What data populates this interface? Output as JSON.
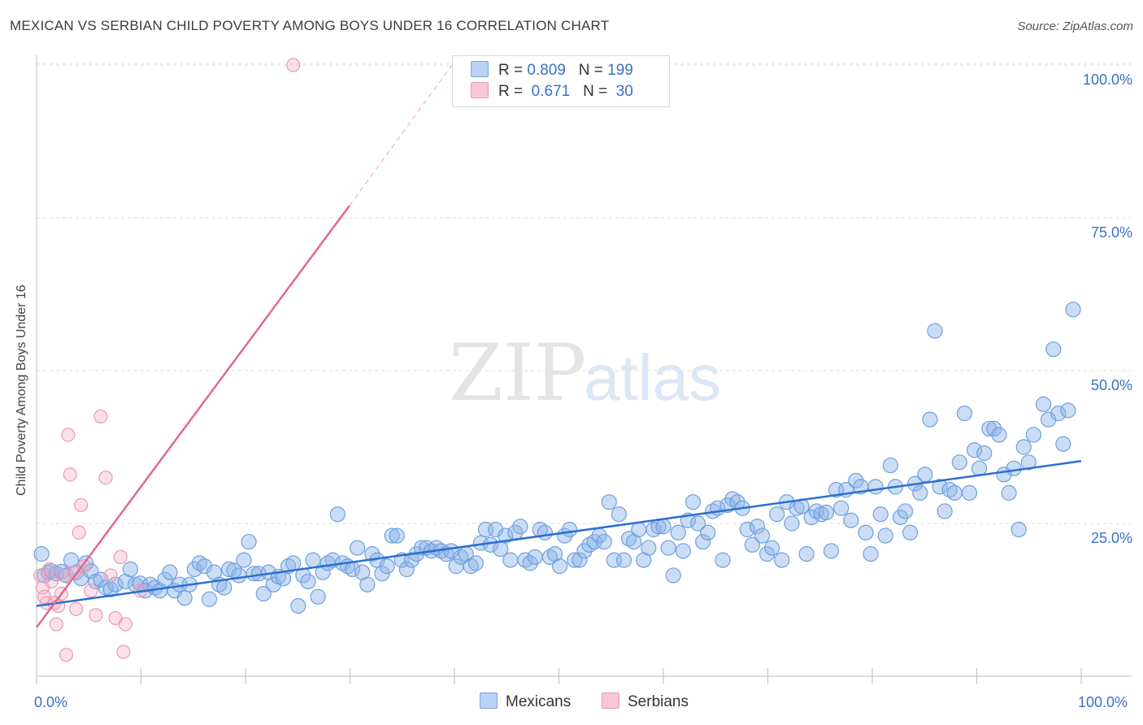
{
  "title": "MEXICAN VS SERBIAN CHILD POVERTY AMONG BOYS UNDER 16 CORRELATION CHART",
  "source": "Source: ZipAtlas.com",
  "watermark": {
    "zip": "ZIP",
    "atlas": "atlas"
  },
  "colors": {
    "blue": "#8cb4e8",
    "blue_line": "#2a6fd0",
    "pink": "#f2a9bf",
    "pink_line": "#e06890",
    "tick": "#3a6fc8"
  },
  "legend_top": {
    "rows": [
      {
        "r_label": "R =",
        "r_value": "0.809",
        "n_label": "N =",
        "n_value": "199",
        "color": "#b9d1f3",
        "border": "#7aa6e0"
      },
      {
        "r_label": "R =",
        "r_value": "0.671",
        "n_label": "N =",
        "n_value": "30",
        "color": "#f9c6d5",
        "border": "#ee96b2"
      }
    ]
  },
  "legend_bottom": [
    {
      "label": "Mexicans",
      "color": "#b9d1f3",
      "border": "#7aa6e0"
    },
    {
      "label": "Serbians",
      "color": "#f9c6d5",
      "border": "#ee96b2"
    }
  ],
  "chart_data": {
    "type": "scatter",
    "title": "MEXICAN VS SERBIAN CHILD POVERTY AMONG BOYS UNDER 16 CORRELATION CHART",
    "ylabel": "Child Poverty Among Boys Under 16",
    "xlabel": "",
    "xlim": [
      0,
      100
    ],
    "ylim": [
      0,
      100
    ],
    "x_ticks": [
      "0.0%",
      "100.0%"
    ],
    "y_ticks": [
      {
        "value": 25,
        "label": "25.0%"
      },
      {
        "value": 50,
        "label": "50.0%"
      },
      {
        "value": 75,
        "label": "75.0%"
      },
      {
        "value": 100,
        "label": "100.0%"
      }
    ],
    "grid": "horizontal dashed",
    "series": [
      {
        "name": "Mexicans",
        "R": 0.809,
        "N": 199,
        "trend": {
          "x0": 0,
          "y0": 11.5,
          "x1": 100,
          "y1": 35.2
        },
        "points": [
          [
            0.5,
            20.0
          ],
          [
            0.8,
            16.5
          ],
          [
            1.2,
            17.0
          ],
          [
            1.5,
            17.2
          ],
          [
            2.0,
            16.8
          ],
          [
            2.5,
            17.1
          ],
          [
            3.0,
            16.5
          ],
          [
            3.5,
            19.0
          ],
          [
            4.0,
            17.0
          ],
          [
            4.5,
            16.0
          ],
          [
            5.0,
            18.5
          ],
          [
            5.5,
            17.2
          ],
          [
            6.0,
            15.5
          ],
          [
            6.5,
            15.8
          ],
          [
            7.0,
            14.5
          ],
          [
            7.5,
            14.2
          ],
          [
            8.0,
            15.0
          ],
          [
            9.0,
            15.5
          ],
          [
            9.5,
            17.5
          ],
          [
            10.0,
            15.0
          ],
          [
            10.5,
            15.2
          ],
          [
            11.0,
            14.0
          ],
          [
            11.5,
            15.0
          ],
          [
            12.0,
            14.5
          ],
          [
            12.5,
            14.0
          ],
          [
            13.0,
            15.8
          ],
          [
            13.5,
            17.0
          ],
          [
            14.0,
            14.0
          ],
          [
            14.5,
            15.0
          ],
          [
            15.0,
            12.8
          ],
          [
            15.5,
            15.0
          ],
          [
            16.0,
            17.5
          ],
          [
            16.5,
            18.5
          ],
          [
            17.0,
            18.0
          ],
          [
            17.5,
            12.6
          ],
          [
            18.0,
            17.0
          ],
          [
            18.5,
            15.0
          ],
          [
            19.0,
            14.5
          ],
          [
            19.5,
            17.5
          ],
          [
            20.0,
            17.3
          ],
          [
            20.5,
            16.5
          ],
          [
            21.0,
            19.0
          ],
          [
            21.5,
            22.0
          ],
          [
            22.0,
            16.8
          ],
          [
            22.5,
            16.8
          ],
          [
            23.0,
            13.5
          ],
          [
            23.5,
            17.0
          ],
          [
            24.0,
            15.0
          ],
          [
            24.5,
            16.3
          ],
          [
            25.0,
            16.0
          ],
          [
            25.5,
            18.0
          ],
          [
            26.0,
            18.5
          ],
          [
            26.5,
            11.5
          ],
          [
            27.0,
            16.5
          ],
          [
            27.5,
            15.5
          ],
          [
            28.0,
            19.0
          ],
          [
            28.5,
            13.0
          ],
          [
            29.0,
            17.0
          ],
          [
            29.5,
            18.5
          ],
          [
            30.0,
            19.0
          ],
          [
            30.5,
            26.5
          ],
          [
            31.0,
            18.5
          ],
          [
            31.5,
            18.0
          ],
          [
            32.0,
            17.5
          ],
          [
            32.5,
            21.0
          ],
          [
            33.0,
            17.0
          ],
          [
            33.5,
            15.0
          ],
          [
            34.0,
            20.0
          ],
          [
            34.5,
            19.0
          ],
          [
            35.0,
            16.8
          ],
          [
            35.5,
            18.0
          ],
          [
            36.0,
            23.0
          ],
          [
            36.5,
            23.0
          ],
          [
            37.0,
            19.0
          ],
          [
            37.5,
            17.5
          ],
          [
            38.0,
            19.0
          ],
          [
            38.5,
            20.0
          ],
          [
            39.0,
            21.0
          ],
          [
            39.5,
            21.0
          ],
          [
            40.0,
            20.5
          ],
          [
            40.5,
            21.0
          ],
          [
            41.0,
            20.5
          ],
          [
            41.5,
            20.0
          ],
          [
            42.0,
            20.5
          ],
          [
            42.5,
            18.0
          ],
          [
            43.0,
            19.5
          ],
          [
            43.5,
            20.0
          ],
          [
            44.0,
            18.0
          ],
          [
            44.5,
            18.5
          ],
          [
            45.0,
            21.8
          ],
          [
            45.5,
            24.0
          ],
          [
            46.0,
            21.5
          ],
          [
            46.5,
            24.0
          ],
          [
            47.0,
            20.8
          ],
          [
            47.5,
            23.0
          ],
          [
            48.0,
            19.0
          ],
          [
            48.5,
            23.5
          ],
          [
            49.0,
            24.5
          ],
          [
            49.5,
            19.0
          ],
          [
            50.0,
            18.5
          ],
          [
            50.5,
            19.5
          ],
          [
            51.0,
            24.0
          ],
          [
            51.5,
            23.5
          ],
          [
            52.0,
            19.5
          ],
          [
            52.5,
            20.0
          ],
          [
            53.0,
            18.0
          ],
          [
            53.5,
            23.0
          ],
          [
            54.0,
            24.0
          ],
          [
            54.5,
            19.0
          ],
          [
            55.0,
            19.0
          ],
          [
            55.5,
            20.5
          ],
          [
            56.0,
            21.5
          ],
          [
            56.5,
            22.0
          ],
          [
            57.0,
            23.0
          ],
          [
            57.5,
            22.0
          ],
          [
            58.0,
            28.5
          ],
          [
            58.5,
            19.0
          ],
          [
            59.0,
            26.5
          ],
          [
            59.5,
            19.0
          ],
          [
            60.0,
            22.5
          ],
          [
            60.5,
            22.0
          ],
          [
            61.0,
            24.0
          ],
          [
            61.5,
            19.0
          ],
          [
            62.0,
            21.0
          ],
          [
            62.5,
            24.0
          ],
          [
            63.0,
            24.5
          ],
          [
            63.5,
            24.5
          ],
          [
            64.0,
            21.0
          ],
          [
            64.5,
            16.5
          ],
          [
            65.0,
            23.5
          ],
          [
            65.5,
            20.5
          ],
          [
            66.0,
            25.5
          ],
          [
            66.5,
            28.5
          ],
          [
            67.0,
            25.0
          ],
          [
            67.5,
            22.0
          ],
          [
            68.0,
            23.5
          ],
          [
            68.5,
            27.0
          ],
          [
            69.0,
            27.5
          ],
          [
            69.5,
            19.0
          ],
          [
            70.0,
            28.0
          ],
          [
            70.5,
            29.0
          ],
          [
            71.0,
            28.5
          ],
          [
            71.5,
            27.5
          ],
          [
            72.0,
            24.0
          ],
          [
            72.5,
            21.5
          ],
          [
            73.0,
            24.5
          ],
          [
            73.5,
            23.0
          ],
          [
            74.0,
            20.0
          ],
          [
            74.5,
            21.0
          ],
          [
            75.0,
            26.5
          ],
          [
            75.5,
            19.0
          ],
          [
            76.0,
            28.5
          ],
          [
            76.5,
            25.0
          ],
          [
            77.0,
            27.5
          ],
          [
            77.5,
            27.8
          ],
          [
            78.0,
            20.0
          ],
          [
            78.5,
            26.0
          ],
          [
            79.0,
            27.0
          ],
          [
            79.5,
            26.5
          ],
          [
            80.0,
            26.8
          ],
          [
            80.5,
            20.5
          ],
          [
            81.0,
            30.5
          ],
          [
            81.5,
            27.5
          ],
          [
            82.0,
            30.5
          ],
          [
            82.5,
            25.5
          ],
          [
            83.0,
            32.0
          ],
          [
            83.5,
            31.0
          ],
          [
            84.0,
            23.5
          ],
          [
            84.5,
            20.0
          ],
          [
            85.0,
            31.0
          ],
          [
            85.5,
            26.5
          ],
          [
            86.0,
            23.0
          ],
          [
            86.5,
            34.5
          ],
          [
            87.0,
            31.0
          ],
          [
            87.5,
            26.0
          ],
          [
            88.0,
            27.0
          ],
          [
            88.5,
            23.5
          ],
          [
            89.0,
            31.5
          ],
          [
            89.5,
            30.0
          ],
          [
            90.0,
            33.0
          ],
          [
            90.5,
            42.0
          ],
          [
            91.0,
            56.5
          ],
          [
            91.5,
            31.0
          ],
          [
            92.0,
            27.0
          ],
          [
            92.5,
            30.5
          ],
          [
            93.0,
            30.0
          ],
          [
            93.5,
            35.0
          ],
          [
            94.0,
            43.0
          ],
          [
            94.5,
            30.0
          ],
          [
            95.0,
            37.0
          ],
          [
            95.5,
            34.0
          ],
          [
            96.0,
            36.5
          ],
          [
            96.5,
            40.5
          ],
          [
            97.0,
            40.5
          ],
          [
            97.5,
            39.5
          ],
          [
            98.0,
            33.0
          ],
          [
            98.5,
            30.0
          ],
          [
            99.0,
            34.0
          ],
          [
            99.5,
            24.0
          ],
          [
            100.0,
            37.5
          ],
          [
            100.5,
            35.0
          ],
          [
            101.0,
            39.5
          ],
          [
            102.0,
            44.5
          ],
          [
            102.5,
            42.0
          ],
          [
            103.0,
            53.5
          ],
          [
            103.5,
            43.0
          ],
          [
            104.0,
            38.0
          ],
          [
            104.5,
            43.5
          ],
          [
            105.0,
            60.0
          ]
        ]
      },
      {
        "name": "Serbians",
        "R": 0.671,
        "N": 30,
        "trend": {
          "x0": 0,
          "y0": 8.0,
          "x1": 30,
          "y1": 77.0,
          "dashed_to": {
            "x": 40,
            "y": 100
          }
        },
        "points": [
          [
            0.4,
            16.5
          ],
          [
            0.6,
            14.5
          ],
          [
            0.8,
            13.0
          ],
          [
            1.0,
            12.0
          ],
          [
            1.3,
            17.5
          ],
          [
            1.5,
            15.5
          ],
          [
            1.8,
            12.0
          ],
          [
            2.0,
            8.5
          ],
          [
            2.2,
            11.5
          ],
          [
            2.5,
            13.5
          ],
          [
            2.8,
            16.5
          ],
          [
            3.0,
            3.5
          ],
          [
            3.2,
            39.5
          ],
          [
            3.4,
            33.0
          ],
          [
            3.8,
            17.0
          ],
          [
            4.0,
            11.0
          ],
          [
            4.3,
            23.5
          ],
          [
            4.5,
            28.0
          ],
          [
            4.8,
            18.0
          ],
          [
            5.5,
            14.0
          ],
          [
            6.0,
            10.0
          ],
          [
            6.5,
            42.5
          ],
          [
            7.0,
            32.5
          ],
          [
            7.5,
            16.5
          ],
          [
            8.0,
            9.5
          ],
          [
            8.5,
            19.5
          ],
          [
            8.8,
            4.0
          ],
          [
            9.0,
            8.5
          ],
          [
            10.5,
            14.0
          ],
          [
            26.0,
            100.0
          ]
        ]
      }
    ]
  }
}
